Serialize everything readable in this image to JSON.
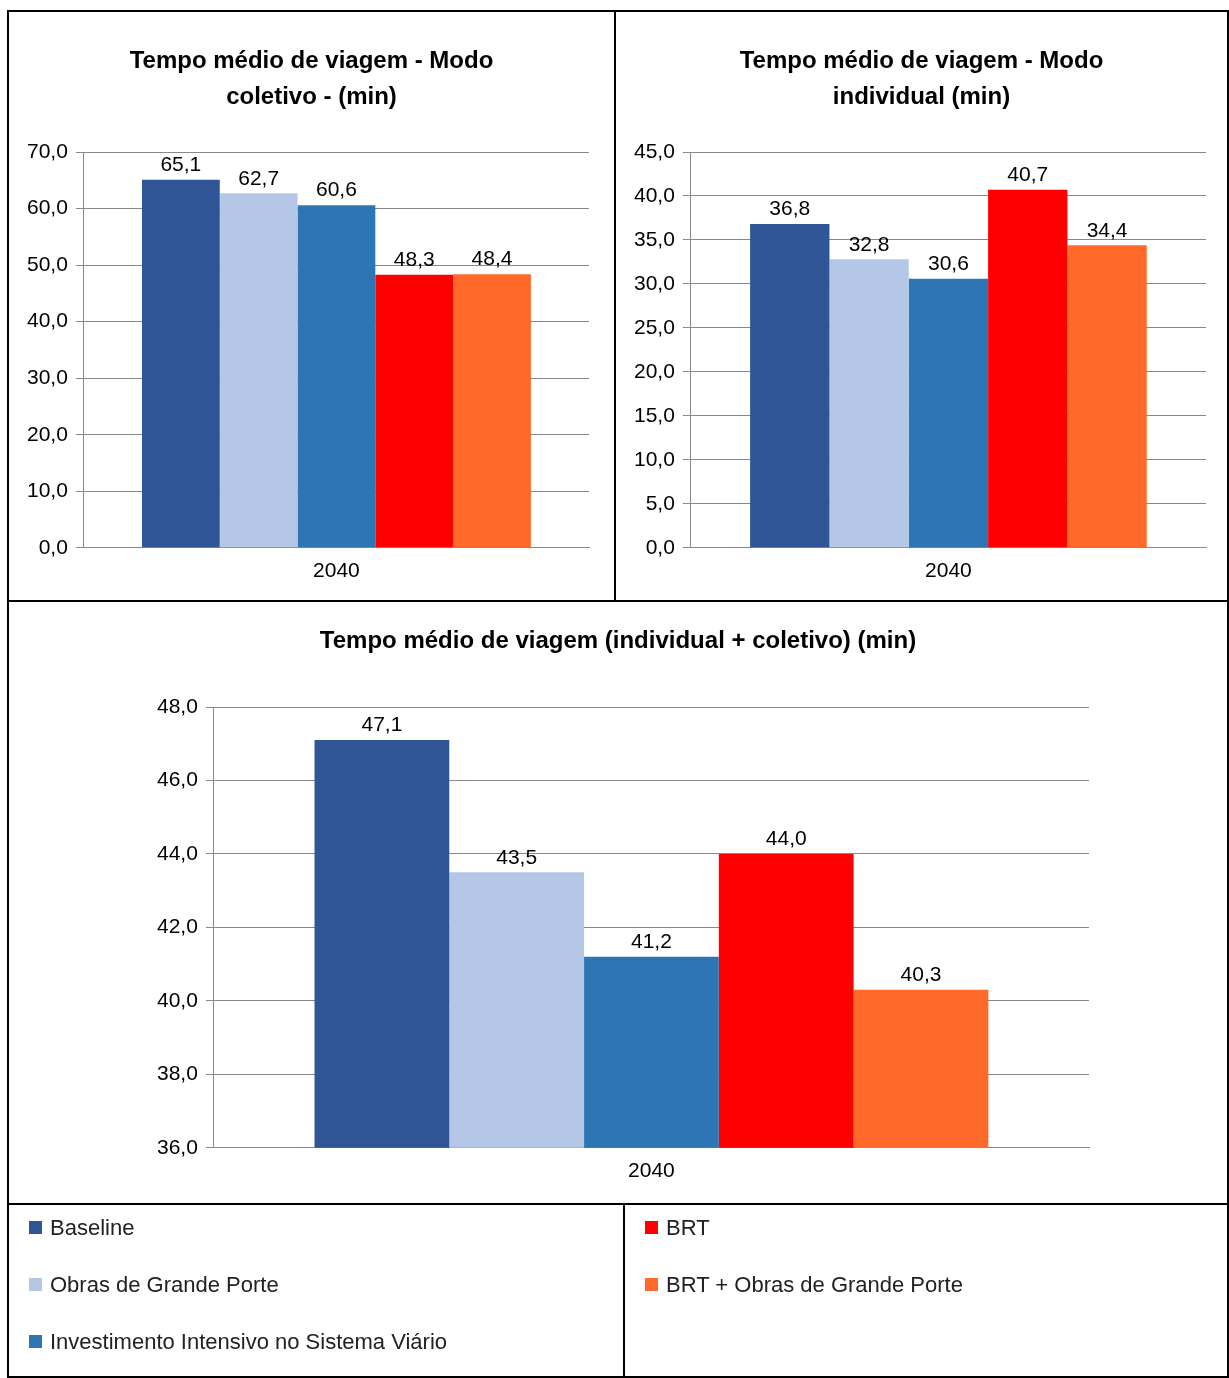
{
  "chart_data": [
    {
      "type": "bar",
      "title": "Tempo médio de viagem - Modo coletivo - (min)",
      "categories": [
        "2040"
      ],
      "series": [
        {
          "name": "Baseline",
          "color": "#2f5597",
          "values": [
            65.1
          ],
          "value_labels": [
            "65,1"
          ]
        },
        {
          "name": "Obras de Grande Porte",
          "color": "#b4c7e7",
          "values": [
            62.7
          ],
          "value_labels": [
            "62,7"
          ]
        },
        {
          "name": "Investimento Intensivo no Sistema Viário",
          "color": "#2e75b6",
          "values": [
            60.6
          ],
          "value_labels": [
            "60,6"
          ]
        },
        {
          "name": "BRT",
          "color": "#ff0000",
          "values": [
            48.3
          ],
          "value_labels": [
            "48,3"
          ]
        },
        {
          "name": "BRT + Obras de Grande Porte",
          "color": "#ff6a2b",
          "values": [
            48.4
          ],
          "value_labels": [
            "48,4"
          ]
        }
      ],
      "ylim": [
        0,
        70
      ],
      "yticks": [
        {
          "value": 0,
          "label": "0,0"
        },
        {
          "value": 10,
          "label": "10,0"
        },
        {
          "value": 20,
          "label": "20,0"
        },
        {
          "value": 30,
          "label": "30,0"
        },
        {
          "value": 40,
          "label": "40,0"
        },
        {
          "value": 50,
          "label": "50,0"
        },
        {
          "value": 60,
          "label": "60,0"
        },
        {
          "value": 70,
          "label": "70,0"
        }
      ],
      "grid": "y",
      "legend": "bottom"
    },
    {
      "type": "bar",
      "title": "Tempo médio de viagem - Modo individual (min)",
      "categories": [
        "2040"
      ],
      "series": [
        {
          "color": "#2f5597",
          "values": [
            36.8
          ],
          "value_labels": [
            "36,8"
          ]
        },
        {
          "color": "#b4c7e7",
          "values": [
            32.8
          ],
          "value_labels": [
            "32,8"
          ]
        },
        {
          "color": "#2e75b6",
          "values": [
            30.6
          ],
          "value_labels": [
            "30,6"
          ]
        },
        {
          "color": "#ff0000",
          "values": [
            40.7
          ],
          "value_labels": [
            "40,7"
          ]
        },
        {
          "color": "#ff6a2b",
          "values": [
            34.4
          ],
          "value_labels": [
            "34,4"
          ]
        }
      ],
      "ylim": [
        0,
        45
      ],
      "yticks": [
        {
          "value": 0,
          "label": "0,0"
        },
        {
          "value": 5,
          "label": "5,0"
        },
        {
          "value": 10,
          "label": "10,0"
        },
        {
          "value": 15,
          "label": "15,0"
        },
        {
          "value": 20,
          "label": "20,0"
        },
        {
          "value": 25,
          "label": "25,0"
        },
        {
          "value": 30,
          "label": "30,0"
        },
        {
          "value": 35,
          "label": "35,0"
        },
        {
          "value": 40,
          "label": "40,0"
        },
        {
          "value": 45,
          "label": "45,0"
        }
      ],
      "grid": "y"
    },
    {
      "type": "bar",
      "title": "Tempo médio de viagem (individual + coletivo) (min)",
      "categories": [
        "2040"
      ],
      "series": [
        {
          "color": "#2f5597",
          "values": [
            47.1
          ],
          "value_labels": [
            "47,1"
          ]
        },
        {
          "color": "#b4c7e7",
          "values": [
            43.5
          ],
          "value_labels": [
            "43,5"
          ]
        },
        {
          "color": "#2e75b6",
          "values": [
            41.2
          ],
          "value_labels": [
            "41,2"
          ]
        },
        {
          "color": "#ff0000",
          "values": [
            44.0
          ],
          "value_labels": [
            "44,0"
          ]
        },
        {
          "color": "#ff6a2b",
          "values": [
            40.3
          ],
          "value_labels": [
            "40,3"
          ]
        }
      ],
      "ylim": [
        36,
        48
      ],
      "yticks": [
        {
          "value": 36,
          "label": "36,0"
        },
        {
          "value": 38,
          "label": "38,0"
        },
        {
          "value": 40,
          "label": "40,0"
        },
        {
          "value": 42,
          "label": "42,0"
        },
        {
          "value": 44,
          "label": "44,0"
        },
        {
          "value": 46,
          "label": "46,0"
        },
        {
          "value": 48,
          "label": "48,0"
        }
      ],
      "grid": "y"
    }
  ]
}
